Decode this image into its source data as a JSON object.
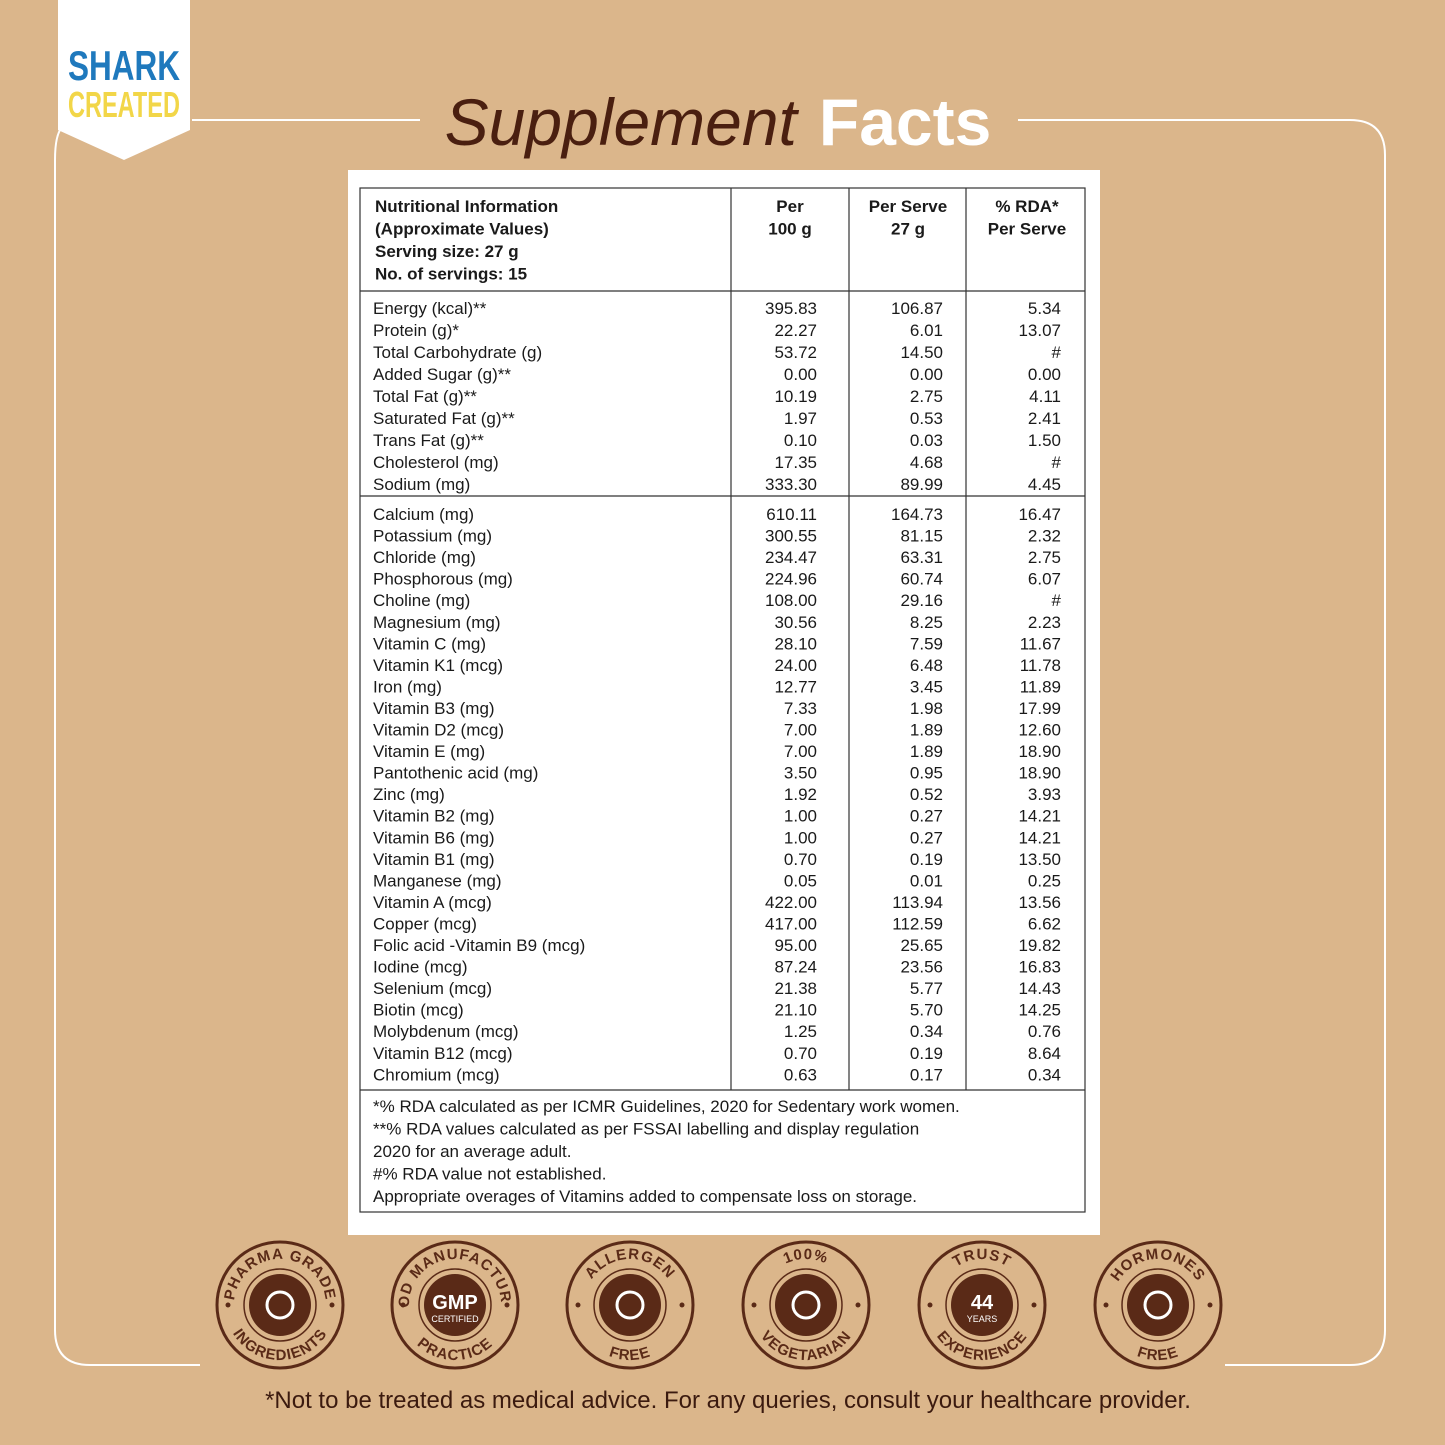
{
  "logo": {
    "line1": "SHARK",
    "line2": "CREATED"
  },
  "title": {
    "light": "Supplement",
    "bold": "Facts"
  },
  "table": {
    "header": [
      [
        "Nutritional Information",
        "(Approximate Values)",
        "Serving size: 27 g",
        "No. of servings: 15"
      ],
      [
        "Per",
        "100 g"
      ],
      [
        "Per Serve",
        "27 g"
      ],
      [
        "% RDA*",
        "Per Serve"
      ]
    ],
    "groups": [
      [
        [
          "Energy (kcal)**",
          "395.83",
          "106.87",
          "5.34"
        ],
        [
          "Protein (g)*",
          "22.27",
          "6.01",
          "13.07"
        ],
        [
          "Total Carbohydrate (g)",
          "53.72",
          "14.50",
          "#"
        ],
        [
          "Added Sugar (g)**",
          "0.00",
          "0.00",
          "0.00"
        ],
        [
          "Total Fat (g)**",
          "10.19",
          "2.75",
          "4.11"
        ],
        [
          "Saturated Fat (g)**",
          "1.97",
          "0.53",
          "2.41"
        ],
        [
          "Trans Fat (g)**",
          "0.10",
          "0.03",
          "1.50"
        ],
        [
          "Cholesterol (mg)",
          "17.35",
          "4.68",
          "#"
        ],
        [
          "Sodium (mg)",
          "333.30",
          "89.99",
          "4.45"
        ]
      ],
      [
        [
          "Calcium (mg)",
          "610.11",
          "164.73",
          "16.47"
        ],
        [
          "Potassium (mg)",
          "300.55",
          "81.15",
          "2.32"
        ],
        [
          "Chloride (mg)",
          "234.47",
          "63.31",
          "2.75"
        ],
        [
          "Phosphorous (mg)",
          "224.96",
          "60.74",
          "6.07"
        ],
        [
          "Choline (mg)",
          "108.00",
          "29.16",
          "#"
        ],
        [
          "Magnesium (mg)",
          "30.56",
          "8.25",
          "2.23"
        ],
        [
          "Vitamin C (mg)",
          "28.10",
          "7.59",
          "11.67"
        ],
        [
          "Vitamin K1 (mcg)",
          "24.00",
          "6.48",
          "11.78"
        ],
        [
          "Iron (mg)",
          "12.77",
          "3.45",
          "11.89"
        ],
        [
          "Vitamin B3 (mg)",
          "7.33",
          "1.98",
          "17.99"
        ],
        [
          "Vitamin D2 (mcg)",
          "7.00",
          "1.89",
          "12.60"
        ],
        [
          "Vitamin E (mg)",
          "7.00",
          "1.89",
          "18.90"
        ],
        [
          "Pantothenic acid (mg)",
          "3.50",
          "0.95",
          "18.90"
        ],
        [
          "Zinc (mg)",
          "1.92",
          "0.52",
          "3.93"
        ],
        [
          "Vitamin B2 (mg)",
          "1.00",
          "0.27",
          "14.21"
        ],
        [
          "Vitamin B6 (mg)",
          "1.00",
          "0.27",
          "14.21"
        ],
        [
          "Vitamin B1 (mg)",
          "0.70",
          "0.19",
          "13.50"
        ],
        [
          "Manganese (mg)",
          "0.05",
          "0.01",
          "0.25"
        ],
        [
          "Vitamin A (mcg)",
          "422.00",
          "113.94",
          "13.56"
        ],
        [
          "Copper (mcg)",
          "417.00",
          "112.59",
          "6.62"
        ],
        [
          "Folic acid -Vitamin B9 (mcg)",
          "95.00",
          "25.65",
          "19.82"
        ],
        [
          "Iodine (mcg)",
          "87.24",
          "23.56",
          "16.83"
        ],
        [
          "Selenium (mcg)",
          "21.38",
          "5.77",
          "14.43"
        ],
        [
          "Biotin (mcg)",
          "21.10",
          "5.70",
          "14.25"
        ],
        [
          "Molybdenum (mcg)",
          "1.25",
          "0.34",
          "0.76"
        ],
        [
          "Vitamin B12 (mcg)",
          "0.70",
          "0.19",
          "8.64"
        ],
        [
          "Chromium (mcg)",
          "0.63",
          "0.17",
          "0.34"
        ]
      ]
    ],
    "footnotes": [
      "*% RDA calculated as per ICMR Guidelines, 2020 for Sedentary work women.",
      "**% RDA values calculated as per FSSAI labelling and display regulation",
      "2020 for an average adult.",
      "#% RDA value not established.",
      "Appropriate overages of Vitamins added to compensate loss on storage."
    ]
  },
  "badges": [
    {
      "top": "PHARMA GRADE",
      "bottom": "INGREDIENTS"
    },
    {
      "top": "GOOD MANUFACTURING",
      "center": [
        "GMP",
        "CERTIFIED"
      ],
      "bottom": "PRACTICE"
    },
    {
      "top": "ALLERGEN",
      "bottom": "FREE"
    },
    {
      "top": "100%",
      "bottom": "VEGETARIAN"
    },
    {
      "top": "TRUST",
      "center": [
        "44",
        "YEARS"
      ],
      "bottom": "EXPERIENCE"
    },
    {
      "top": "HORMONES",
      "bottom": "FREE"
    }
  ],
  "disclaimer": "*Not to be treated as medical advice. For any queries, consult your healthcare provider."
}
